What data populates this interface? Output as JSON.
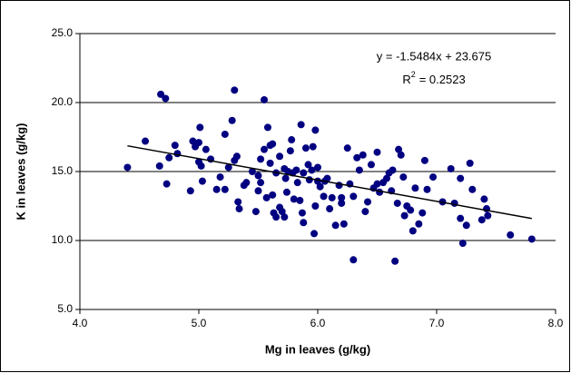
{
  "chart_data": {
    "type": "scatter",
    "x_label": "Mg in leaves (g/kg)",
    "y_label": "K in leaves (g/kg)",
    "x": [
      4.4,
      4.55,
      4.67,
      4.68,
      4.72,
      4.73,
      4.75,
      4.8,
      4.82,
      4.93,
      4.95,
      4.97,
      5.0,
      5.0,
      5.01,
      5.02,
      5.03,
      5.06,
      5.1,
      5.15,
      5.18,
      5.22,
      5.22,
      5.25,
      5.28,
      5.3,
      5.3,
      5.32,
      5.33,
      5.34,
      5.38,
      5.4,
      5.45,
      5.48,
      5.5,
      5.5,
      5.52,
      5.52,
      5.55,
      5.55,
      5.57,
      5.58,
      5.6,
      5.6,
      5.62,
      5.62,
      5.63,
      5.65,
      5.65,
      5.68,
      5.68,
      5.7,
      5.72,
      5.72,
      5.73,
      5.74,
      5.75,
      5.77,
      5.78,
      5.79,
      5.8,
      5.82,
      5.83,
      5.85,
      5.86,
      5.87,
      5.88,
      5.88,
      5.9,
      5.92,
      5.93,
      5.95,
      5.96,
      5.97,
      5.98,
      5.98,
      6.0,
      6.0,
      6.02,
      6.05,
      6.06,
      6.08,
      6.1,
      6.12,
      6.15,
      6.18,
      6.2,
      6.2,
      6.22,
      6.25,
      6.27,
      6.3,
      6.3,
      6.33,
      6.35,
      6.38,
      6.4,
      6.42,
      6.45,
      6.47,
      6.5,
      6.5,
      6.52,
      6.55,
      6.58,
      6.6,
      6.62,
      6.63,
      6.65,
      6.67,
      6.68,
      6.7,
      6.72,
      6.73,
      6.75,
      6.78,
      6.8,
      6.82,
      6.85,
      6.88,
      6.9,
      6.92,
      6.97,
      7.05,
      7.12,
      7.15,
      7.2,
      7.2,
      7.22,
      7.25,
      7.28,
      7.3,
      7.38,
      7.4,
      7.42,
      7.43,
      7.62,
      7.8
    ],
    "values": [
      15.3,
      17.2,
      15.4,
      20.6,
      20.3,
      14.1,
      16.0,
      16.9,
      16.3,
      13.6,
      17.2,
      16.8,
      17.1,
      15.7,
      18.2,
      15.4,
      14.3,
      16.6,
      15.9,
      13.7,
      14.6,
      13.7,
      17.7,
      15.3,
      18.7,
      20.9,
      15.8,
      16.1,
      12.8,
      12.3,
      14.0,
      14.2,
      15.0,
      12.1,
      14.7,
      13.6,
      14.2,
      15.9,
      20.2,
      16.6,
      13.1,
      18.2,
      16.9,
      15.6,
      17.0,
      13.3,
      12.0,
      14.9,
      11.7,
      12.4,
      16.1,
      12.1,
      15.2,
      11.7,
      14.5,
      13.5,
      15.0,
      16.5,
      17.3,
      14.9,
      13.0,
      15.1,
      14.2,
      12.9,
      18.4,
      12.0,
      11.3,
      14.9,
      16.7,
      15.5,
      14.4,
      15.1,
      16.8,
      10.5,
      12.5,
      18.0,
      15.3,
      14.3,
      13.9,
      13.2,
      14.3,
      14.5,
      12.3,
      13.1,
      11.1,
      14.0,
      12.7,
      13.1,
      11.2,
      16.7,
      14.1,
      13.2,
      8.6,
      16.0,
      15.1,
      16.2,
      12.1,
      12.8,
      15.5,
      13.8,
      16.4,
      14.1,
      13.5,
      14.2,
      14.5,
      14.9,
      13.6,
      15.1,
      8.5,
      12.7,
      16.6,
      16.2,
      14.6,
      11.8,
      12.5,
      12.2,
      10.7,
      13.8,
      11.2,
      12.0,
      15.8,
      13.7,
      14.6,
      12.8,
      15.2,
      12.7,
      14.5,
      11.6,
      9.8,
      11.1,
      15.6,
      13.7,
      11.5,
      13.0,
      12.3,
      11.8,
      10.4,
      10.1
    ],
    "color": "#000080",
    "xlim": [
      4.0,
      8.0
    ],
    "xticks": [
      {
        "value": 4,
        "label": "4.0"
      },
      {
        "value": 5,
        "label": "5.0"
      },
      {
        "value": 6,
        "label": "6.0"
      },
      {
        "value": 7,
        "label": "7.0"
      },
      {
        "value": 8,
        "label": "8.0"
      }
    ],
    "ylim": [
      5.0,
      25.0
    ],
    "yticks": [
      {
        "value": 5,
        "label": "5.0"
      },
      {
        "value": 10,
        "label": "10.0"
      },
      {
        "value": 15,
        "label": "15.0"
      },
      {
        "value": 20,
        "label": "20.0"
      },
      {
        "value": 25,
        "label": "25.0"
      }
    ],
    "grid": true,
    "trendline": {
      "slope": -1.5484,
      "intercept": 23.675,
      "x_range": [
        4.4,
        7.8
      ],
      "color": "#000000",
      "equation_label": "y = -1.5484x + 23.675",
      "r2_symbol": "R",
      "r2_exponent": "2",
      "r2_value": "= 0.2523"
    }
  }
}
